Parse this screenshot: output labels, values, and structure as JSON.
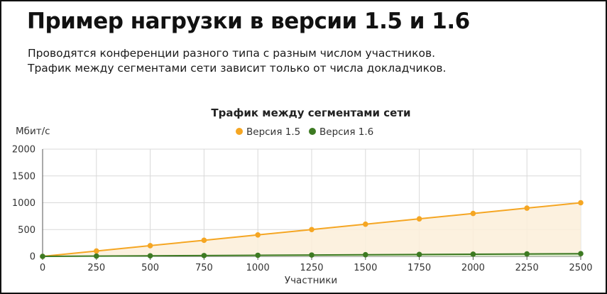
{
  "heading": "Пример нагрузки в версии 1.5 и 1.6",
  "description": [
    "Проводятся конференции разного типа с разным числом участников.",
    "Трафик между сегментами сети зависит только от числа докладчиков."
  ],
  "chart_data": {
    "type": "area",
    "title": "Трафик между сегментами сети",
    "xlabel": "Участники",
    "ylabel": "Мбит/с",
    "x": [
      0,
      250,
      500,
      750,
      1000,
      1250,
      1500,
      1750,
      2000,
      2250,
      2500
    ],
    "xlim": [
      0,
      2500
    ],
    "ylim": [
      0,
      2000
    ],
    "x_ticks": [
      0,
      250,
      500,
      750,
      1000,
      1250,
      1500,
      1750,
      2000,
      2250,
      2500
    ],
    "y_ticks": [
      0,
      500,
      1000,
      1500,
      2000
    ],
    "grid": true,
    "legend_position": "top-center",
    "series": [
      {
        "name": "Версия 1.5",
        "color": "#f5a623",
        "fill": "#fcefd9",
        "values": [
          0,
          100,
          200,
          300,
          400,
          500,
          600,
          700,
          800,
          900,
          1000
        ]
      },
      {
        "name": "Версия 1.6",
        "color": "#3d7a22",
        "fill": "#cfe3c2",
        "values": [
          0,
          5,
          10,
          15,
          20,
          25,
          30,
          35,
          40,
          45,
          50
        ]
      }
    ]
  }
}
